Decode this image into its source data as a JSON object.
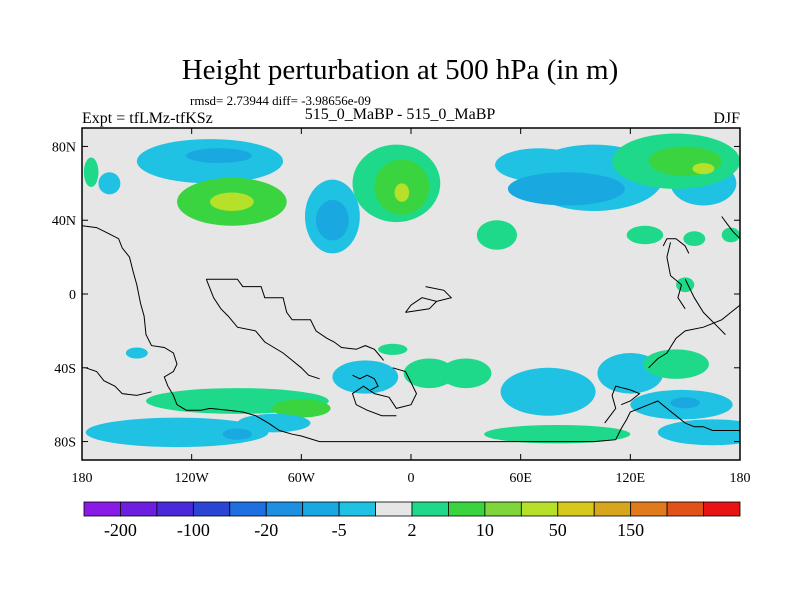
{
  "chart_data": {
    "type": "heatmap",
    "title": "Height perturbation at 500 hPa (in m)",
    "stats_line": "rmsd= 2.73944 diff= -3.98656e-09",
    "left_label": "Expt = tfLMz-tfKSz",
    "center_label": "515_0_MaBP - 515_0_MaBP",
    "right_label": "DJF",
    "xlim": [
      -180,
      180
    ],
    "ylim": [
      -90,
      90
    ],
    "x_ticks": [
      {
        "value": -180,
        "label": "180"
      },
      {
        "value": -120,
        "label": "120W"
      },
      {
        "value": -60,
        "label": "60W"
      },
      {
        "value": 0,
        "label": "0"
      },
      {
        "value": 60,
        "label": "60E"
      },
      {
        "value": 120,
        "label": "120E"
      },
      {
        "value": 180,
        "label": "180"
      }
    ],
    "y_ticks": [
      {
        "value": 80,
        "label": "80N"
      },
      {
        "value": 40,
        "label": "40N"
      },
      {
        "value": 0,
        "label": "0"
      },
      {
        "value": -40,
        "label": "40S"
      },
      {
        "value": -80,
        "label": "80S"
      }
    ],
    "colorbar": {
      "colors": [
        "#8a1ae6",
        "#6d1fe0",
        "#4a2ad8",
        "#2a45d4",
        "#1e6fe0",
        "#1f8fe2",
        "#1aa8e0",
        "#1fc2e2",
        "#e6e6e6",
        "#1fd98a",
        "#3ad440",
        "#7ed63a",
        "#b6e02a",
        "#d8c81e",
        "#d8a51e",
        "#e07a1a",
        "#e0521a",
        "#e81414"
      ],
      "labels": [
        {
          "boundary": 1,
          "label": "-200"
        },
        {
          "boundary": 3,
          "label": "-100"
        },
        {
          "boundary": 5,
          "label": "-20"
        },
        {
          "boundary": 7,
          "label": "-5"
        },
        {
          "boundary": 9,
          "label": "2"
        },
        {
          "boundary": 11,
          "label": "10"
        },
        {
          "boundary": 13,
          "label": "50"
        },
        {
          "boundary": 15,
          "label": "150"
        }
      ]
    },
    "anomaly_regions": [
      {
        "lon": -110,
        "lat": 72,
        "rlon": 40,
        "rlat": 12,
        "level": 7
      },
      {
        "lon": -105,
        "lat": 75,
        "rlon": 18,
        "rlat": 4,
        "level": 6
      },
      {
        "lon": -165,
        "lat": 60,
        "rlon": 6,
        "rlat": 6,
        "level": 7
      },
      {
        "lon": -98,
        "lat": 50,
        "rlon": 30,
        "rlat": 13,
        "level": 10
      },
      {
        "lon": -98,
        "lat": 50,
        "rlon": 12,
        "rlat": 5,
        "level": 12
      },
      {
        "lon": -43,
        "lat": 42,
        "rlon": 15,
        "rlat": 20,
        "level": 7
      },
      {
        "lon": -43,
        "lat": 40,
        "rlon": 9,
        "rlat": 11,
        "level": 6
      },
      {
        "lon": -8,
        "lat": 60,
        "rlon": 24,
        "rlat": 21,
        "level": 9
      },
      {
        "lon": -5,
        "lat": 58,
        "rlon": 15,
        "rlat": 15,
        "level": 10
      },
      {
        "lon": -5,
        "lat": 55,
        "rlon": 4,
        "rlat": 5,
        "level": 12
      },
      {
        "lon": 100,
        "lat": 63,
        "rlon": 38,
        "rlat": 18,
        "level": 7
      },
      {
        "lon": 70,
        "lat": 70,
        "rlon": 24,
        "rlat": 9,
        "level": 7
      },
      {
        "lon": 85,
        "lat": 57,
        "rlon": 32,
        "rlat": 9,
        "level": 6
      },
      {
        "lon": 160,
        "lat": 60,
        "rlon": 18,
        "rlat": 12,
        "level": 7
      },
      {
        "lon": 145,
        "lat": 72,
        "rlon": 35,
        "rlat": 15,
        "level": 9
      },
      {
        "lon": 150,
        "lat": 72,
        "rlon": 20,
        "rlat": 8,
        "level": 10
      },
      {
        "lon": 160,
        "lat": 68,
        "rlon": 6,
        "rlat": 3,
        "level": 12
      },
      {
        "lon": -175,
        "lat": 66,
        "rlon": 4,
        "rlat": 8,
        "level": 9
      },
      {
        "lon": 128,
        "lat": 32,
        "rlon": 10,
        "rlat": 5,
        "level": 9
      },
      {
        "lon": 155,
        "lat": 30,
        "rlon": 6,
        "rlat": 4,
        "level": 9
      },
      {
        "lon": 175,
        "lat": 32,
        "rlon": 5,
        "rlat": 4,
        "level": 9
      },
      {
        "lon": 150,
        "lat": 5,
        "rlon": 5,
        "rlat": 4,
        "level": 9
      },
      {
        "lon": 47,
        "lat": 32,
        "rlon": 11,
        "rlat": 8,
        "level": 9
      },
      {
        "lon": -150,
        "lat": -32,
        "rlon": 6,
        "rlat": 3,
        "level": 7
      },
      {
        "lon": -10,
        "lat": -30,
        "rlon": 8,
        "rlat": 3,
        "level": 9
      },
      {
        "lon": -25,
        "lat": -45,
        "rlon": 18,
        "rlat": 9,
        "level": 7
      },
      {
        "lon": 10,
        "lat": -43,
        "rlon": 14,
        "rlat": 8,
        "level": 9
      },
      {
        "lon": 30,
        "lat": -43,
        "rlon": 14,
        "rlat": 8,
        "level": 9
      },
      {
        "lon": 75,
        "lat": -53,
        "rlon": 26,
        "rlat": 13,
        "level": 7
      },
      {
        "lon": 120,
        "lat": -43,
        "rlon": 18,
        "rlat": 11,
        "level": 7
      },
      {
        "lon": 145,
        "lat": -38,
        "rlon": 18,
        "rlat": 8,
        "level": 9
      },
      {
        "lon": 148,
        "lat": -60,
        "rlon": 28,
        "rlat": 8,
        "level": 7
      },
      {
        "lon": 150,
        "lat": -59,
        "rlon": 8,
        "rlat": 3,
        "level": 6
      },
      {
        "lon": -95,
        "lat": -58,
        "rlon": 50,
        "rlat": 7,
        "level": 9
      },
      {
        "lon": -60,
        "lat": -62,
        "rlon": 16,
        "rlat": 5,
        "level": 10
      },
      {
        "lon": -128,
        "lat": -75,
        "rlon": 50,
        "rlat": 8,
        "level": 7
      },
      {
        "lon": -95,
        "lat": -76,
        "rlon": 8,
        "rlat": 3,
        "level": 6
      },
      {
        "lon": -75,
        "lat": -70,
        "rlon": 20,
        "rlat": 5,
        "level": 7
      },
      {
        "lon": 80,
        "lat": -76,
        "rlon": 40,
        "rlat": 5,
        "level": 9
      },
      {
        "lon": 165,
        "lat": -75,
        "rlon": 30,
        "rlat": 7,
        "level": 7
      }
    ],
    "land_outline": [
      [
        [
          -180,
          37
        ],
        [
          -172,
          36
        ],
        [
          -166,
          33
        ],
        [
          -160,
          30
        ],
        [
          -158,
          25
        ],
        [
          -154,
          20
        ],
        [
          -152,
          12
        ],
        [
          -150,
          5
        ],
        [
          -148,
          -5
        ],
        [
          -146,
          -12
        ],
        [
          -145,
          -22
        ],
        [
          -142,
          -28
        ],
        [
          -135,
          -29
        ],
        [
          -130,
          -32
        ],
        [
          -128,
          -38
        ],
        [
          -130,
          -42
        ],
        [
          -135,
          -45
        ],
        [
          -133,
          -50
        ],
        [
          -130,
          -55
        ],
        [
          -128,
          -60
        ],
        [
          -123,
          -63
        ],
        [
          -115,
          -63
        ],
        [
          -110,
          -62
        ],
        [
          -100,
          -63
        ],
        [
          -92,
          -64
        ],
        [
          -85,
          -66
        ],
        [
          -78,
          -70
        ],
        [
          -72,
          -74
        ],
        [
          -65,
          -76
        ],
        [
          -60,
          -77
        ],
        [
          -50,
          -80
        ],
        [
          -40,
          -80
        ],
        [
          -20,
          -80
        ],
        [
          0,
          -80
        ],
        [
          20,
          -80
        ],
        [
          40,
          -80
        ],
        [
          60,
          -80
        ],
        [
          80,
          -80
        ],
        [
          100,
          -80
        ],
        [
          112,
          -79
        ],
        [
          115,
          -73
        ],
        [
          118,
          -68
        ],
        [
          120,
          -64
        ],
        [
          125,
          -62
        ],
        [
          130,
          -60
        ],
        [
          135,
          -58
        ],
        [
          140,
          -62
        ],
        [
          145,
          -66
        ],
        [
          150,
          -70
        ],
        [
          155,
          -72
        ],
        [
          160,
          -72
        ],
        [
          165,
          -74
        ],
        [
          172,
          -74
        ],
        [
          180,
          -74
        ]
      ],
      [
        [
          -178,
          -40
        ],
        [
          -172,
          -42
        ],
        [
          -168,
          -47
        ],
        [
          -162,
          -50
        ],
        [
          -158,
          -54
        ],
        [
          -150,
          -55
        ],
        [
          -142,
          -53
        ]
      ],
      [
        [
          -112,
          8
        ],
        [
          -95,
          8
        ],
        [
          -92,
          4
        ],
        [
          -82,
          4
        ],
        [
          -80,
          -2
        ],
        [
          -70,
          -2
        ],
        [
          -68,
          -10
        ],
        [
          -65,
          -14
        ],
        [
          -55,
          -14
        ],
        [
          -52,
          -20
        ],
        [
          -46,
          -24
        ],
        [
          -42,
          -26
        ],
        [
          -38,
          -29
        ],
        [
          -30,
          -30
        ],
        [
          -25,
          -28
        ],
        [
          -20,
          -30
        ],
        [
          -15,
          -36
        ]
      ],
      [
        [
          -112,
          8
        ],
        [
          -108,
          -2
        ],
        [
          -104,
          -8
        ],
        [
          -100,
          -12
        ],
        [
          -95,
          -18
        ],
        [
          -85,
          -20
        ],
        [
          -80,
          -26
        ],
        [
          -70,
          -32
        ],
        [
          -65,
          -36
        ],
        [
          -60,
          -40
        ],
        [
          -56,
          -44
        ],
        [
          -50,
          -46
        ]
      ],
      [
        [
          -10,
          -40
        ],
        [
          -3,
          -42
        ],
        [
          0,
          -48
        ],
        [
          3,
          -54
        ],
        [
          0,
          -60
        ],
        [
          -8,
          -62
        ],
        [
          -12,
          -56
        ],
        [
          -20,
          -54
        ],
        [
          -26,
          -50
        ],
        [
          -32,
          -54
        ],
        [
          -30,
          -60
        ],
        [
          -24,
          -63
        ],
        [
          -16,
          -66
        ],
        [
          -8,
          -66
        ]
      ],
      [
        [
          -32,
          -44
        ],
        [
          -28,
          -46
        ],
        [
          -24,
          -44
        ],
        [
          -20,
          -46
        ],
        [
          -18,
          -50
        ],
        [
          -22,
          -52
        ]
      ],
      [
        [
          -3,
          -10
        ],
        [
          10,
          -8
        ],
        [
          14,
          -4
        ],
        [
          6,
          -2
        ],
        [
          0,
          -6
        ],
        [
          -3,
          -10
        ]
      ],
      [
        [
          8,
          4
        ],
        [
          18,
          2
        ],
        [
          22,
          -2
        ],
        [
          14,
          -4
        ]
      ],
      [
        [
          106,
          -70
        ],
        [
          112,
          -62
        ],
        [
          110,
          -55
        ],
        [
          112,
          -50
        ],
        [
          120,
          -52
        ],
        [
          125,
          -54
        ],
        [
          120,
          -58
        ],
        [
          115,
          -60
        ]
      ],
      [
        [
          130,
          -40
        ],
        [
          135,
          -35
        ],
        [
          140,
          -32
        ],
        [
          145,
          -24
        ],
        [
          150,
          -20
        ],
        [
          160,
          -18
        ],
        [
          170,
          -14
        ],
        [
          175,
          -10
        ],
        [
          180,
          -6
        ]
      ],
      [
        [
          142,
          28
        ],
        [
          140,
          20
        ],
        [
          142,
          10
        ],
        [
          148,
          5
        ],
        [
          146,
          -2
        ],
        [
          150,
          -8
        ]
      ],
      [
        [
          150,
          8
        ],
        [
          155,
          -2
        ],
        [
          160,
          -10
        ],
        [
          168,
          -18
        ],
        [
          172,
          -22
        ]
      ],
      [
        [
          138,
          26
        ],
        [
          140,
          30
        ],
        [
          145,
          30
        ],
        [
          150,
          26
        ],
        [
          152,
          22
        ]
      ],
      [
        [
          170,
          42
        ],
        [
          173,
          38
        ],
        [
          176,
          34
        ],
        [
          180,
          30
        ]
      ]
    ]
  }
}
